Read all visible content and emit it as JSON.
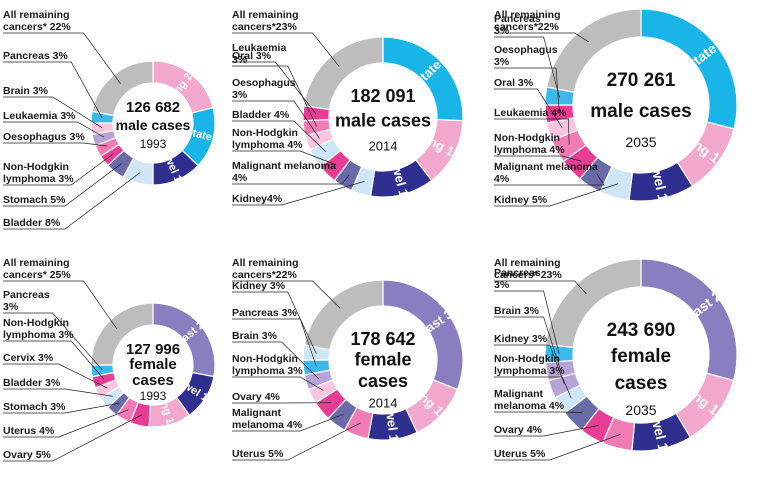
{
  "colors": {
    "grey": "#bdbdbd",
    "prostate": "#19b4e8",
    "lung": "#f2a8cc",
    "bowel": "#2e2f8e",
    "breast": "#8a7dc0",
    "pink1": "#e83d95",
    "pink2": "#f07bb5",
    "pink3": "#f8c4df",
    "lav1": "#b7a4d6",
    "lightblue": "#cfe6f6",
    "slate": "#6a6aa8",
    "skyblue": "#3db8ea"
  },
  "chart_data": [
    {
      "type": "pie",
      "title": "126 682 male cases",
      "count": "126 682",
      "subject": "male cases",
      "year": "1993",
      "slices": [
        {
          "name": "Lung",
          "pct": "21%",
          "value": 21,
          "color": "lung",
          "inside": true
        },
        {
          "name": "Prostate",
          "pct": "16%",
          "value": 16,
          "color": "prostate",
          "inside": true
        },
        {
          "name": "Bowel",
          "pct": "13%",
          "value": 13,
          "color": "bowel",
          "inside": true
        },
        {
          "name": "Bladder 8%",
          "value": 8,
          "color": "lightblue"
        },
        {
          "name": "Stomach 5%",
          "value": 5,
          "color": "slate"
        },
        {
          "name": "Non-Hodgkin lymphoma 3%",
          "value": 3,
          "color": "pink1"
        },
        {
          "name": "Oesophagus 3%",
          "value": 3,
          "color": "pink2"
        },
        {
          "name": "Leukaemia 3%",
          "value": 3,
          "color": "lav1"
        },
        {
          "name": "Brain 3%",
          "value": 3,
          "color": "pink3"
        },
        {
          "name": "Pancreas 3%",
          "value": 3,
          "color": "skyblue"
        },
        {
          "name": "All remaining cancers* 22%",
          "value": 22,
          "color": "grey"
        }
      ]
    },
    {
      "type": "pie",
      "title": "182 091 male cases",
      "count": "182 091",
      "subject": "male cases",
      "year": "2014",
      "slices": [
        {
          "name": "Prostate",
          "pct": "26%",
          "value": 26,
          "color": "prostate",
          "inside": true
        },
        {
          "name": "Lung",
          "pct": "14%",
          "value": 14,
          "color": "lung",
          "inside": true
        },
        {
          "name": "Bowel",
          "pct": "13%",
          "value": 13,
          "color": "bowel",
          "inside": true
        },
        {
          "name": "Kidney 4%",
          "value": 4,
          "color": "lightblue"
        },
        {
          "name": "Malignant melanoma 4%",
          "value": 4,
          "color": "slate"
        },
        {
          "name": "Non-Hodgkin lymphoma 4%",
          "value": 4,
          "color": "pink1"
        },
        {
          "name": "Bladder 4%",
          "value": 4,
          "color": "lightblue"
        },
        {
          "name": "Oesophagus 3%",
          "value": 3,
          "color": "pink3"
        },
        {
          "name": "Leukaemia 3%",
          "value": 3,
          "color": "pink2"
        },
        {
          "name": "Oral 3%",
          "value": 3,
          "color": "pink1"
        },
        {
          "name": "All remaining cancers* 23%",
          "value": 23,
          "color": "grey"
        }
      ]
    },
    {
      "type": "pie",
      "title": "270 261 male cases",
      "count": "270 261",
      "subject": "male cases",
      "year": "2035",
      "slices": [
        {
          "name": "Prostate",
          "pct": "29%",
          "value": 29,
          "color": "prostate",
          "inside": true
        },
        {
          "name": "Lung",
          "pct": "12%",
          "value": 12,
          "color": "lung",
          "inside": true
        },
        {
          "name": "Bowel",
          "pct": "11%",
          "value": 11,
          "color": "bowel",
          "inside": true
        },
        {
          "name": "Kidney 5%",
          "value": 5,
          "color": "lightblue"
        },
        {
          "name": "Malignant melanoma 4%",
          "value": 4,
          "color": "slate"
        },
        {
          "name": "Non-Hodgkin lymphoma 4%",
          "value": 4,
          "color": "pink1"
        },
        {
          "name": "Leukaemia 4%",
          "value": 4,
          "color": "pink2"
        },
        {
          "name": "Oral 3%",
          "value": 3,
          "color": "pink3"
        },
        {
          "name": "Oesophagus 3%",
          "value": 3,
          "color": "pink1"
        },
        {
          "name": "Pancreas 3%",
          "value": 3,
          "color": "skyblue"
        },
        {
          "name": "All remaining cancers* 22%",
          "value": 22,
          "color": "grey"
        }
      ]
    },
    {
      "type": "pie",
      "title": "127 996 female cases",
      "count": "127 996",
      "subject": "female cases",
      "year": "1993",
      "slices": [
        {
          "name": "Breast",
          "pct": "28%",
          "value": 28,
          "color": "breast",
          "inside": true
        },
        {
          "name": "Bowel",
          "pct": "12%",
          "value": 12,
          "color": "bowel",
          "inside": true
        },
        {
          "name": "Lung",
          "pct": "11%",
          "value": 11,
          "color": "lung",
          "inside": true
        },
        {
          "name": "Ovary 5%",
          "value": 5,
          "color": "pink1"
        },
        {
          "name": "Uterus 4%",
          "value": 4,
          "color": "pink2"
        },
        {
          "name": "Stomach 3%",
          "value": 3,
          "color": "slate"
        },
        {
          "name": "Bladder 3%",
          "value": 3,
          "color": "lightblue"
        },
        {
          "name": "Cervix 3%",
          "value": 3,
          "color": "pink3"
        },
        {
          "name": "Non-Hodgkin lymphoma 3%",
          "value": 3,
          "color": "pink1"
        },
        {
          "name": "Pancreas 3%",
          "value": 3,
          "color": "skyblue"
        },
        {
          "name": "All remaining cancers* 25%",
          "value": 25,
          "color": "grey"
        }
      ]
    },
    {
      "type": "pie",
      "title": "178 642 female cases",
      "count": "178 642",
      "subject": "female cases",
      "year": "2014",
      "slices": [
        {
          "name": "Breast",
          "pct": "31%",
          "value": 31,
          "color": "breast",
          "inside": true
        },
        {
          "name": "Lung",
          "pct": "12%",
          "value": 12,
          "color": "lung",
          "inside": true
        },
        {
          "name": "Bowel",
          "pct": "10%",
          "value": 10,
          "color": "bowel",
          "inside": true
        },
        {
          "name": "Uterus 5%",
          "value": 5,
          "color": "pink2"
        },
        {
          "name": "Malignant melanoma 4%",
          "value": 4,
          "color": "slate"
        },
        {
          "name": "Ovary 4%",
          "value": 4,
          "color": "pink1"
        },
        {
          "name": "Non-Hodgkin lymphoma 3%",
          "value": 3,
          "color": "pink3"
        },
        {
          "name": "Brain 3%",
          "value": 3,
          "color": "lav1"
        },
        {
          "name": "Pancreas 3%",
          "value": 3,
          "color": "skyblue"
        },
        {
          "name": "Kidney 3%",
          "value": 3,
          "color": "lightblue"
        },
        {
          "name": "All remaining cancers* 22%",
          "value": 22,
          "color": "grey"
        }
      ]
    },
    {
      "type": "pie",
      "title": "243 690 female cases",
      "count": "243 690",
      "subject": "female cases",
      "year": "2035",
      "slices": [
        {
          "name": "Breast",
          "pct": "29%",
          "value": 29,
          "color": "breast",
          "inside": true
        },
        {
          "name": "Lung",
          "pct": "12%",
          "value": 12,
          "color": "lung",
          "inside": true
        },
        {
          "name": "Bowel",
          "pct": "10%",
          "value": 10,
          "color": "bowel",
          "inside": true
        },
        {
          "name": "Uterus 5%",
          "value": 5,
          "color": "pink2"
        },
        {
          "name": "Ovary 4%",
          "value": 4,
          "color": "pink1"
        },
        {
          "name": "Malignant melanoma 4%",
          "value": 4,
          "color": "slate"
        },
        {
          "name": "Non-Hodgkin lymphoma 3%",
          "value": 3,
          "color": "lightblue"
        },
        {
          "name": "Kidney 3%",
          "value": 3,
          "color": "lav1"
        },
        {
          "name": "Brain 3%",
          "value": 3,
          "color": "lav1"
        },
        {
          "name": "Pancreas 3%",
          "value": 3,
          "color": "skyblue"
        },
        {
          "name": "All remaining cancers* 23%",
          "value": 23,
          "color": "grey"
        }
      ]
    }
  ]
}
